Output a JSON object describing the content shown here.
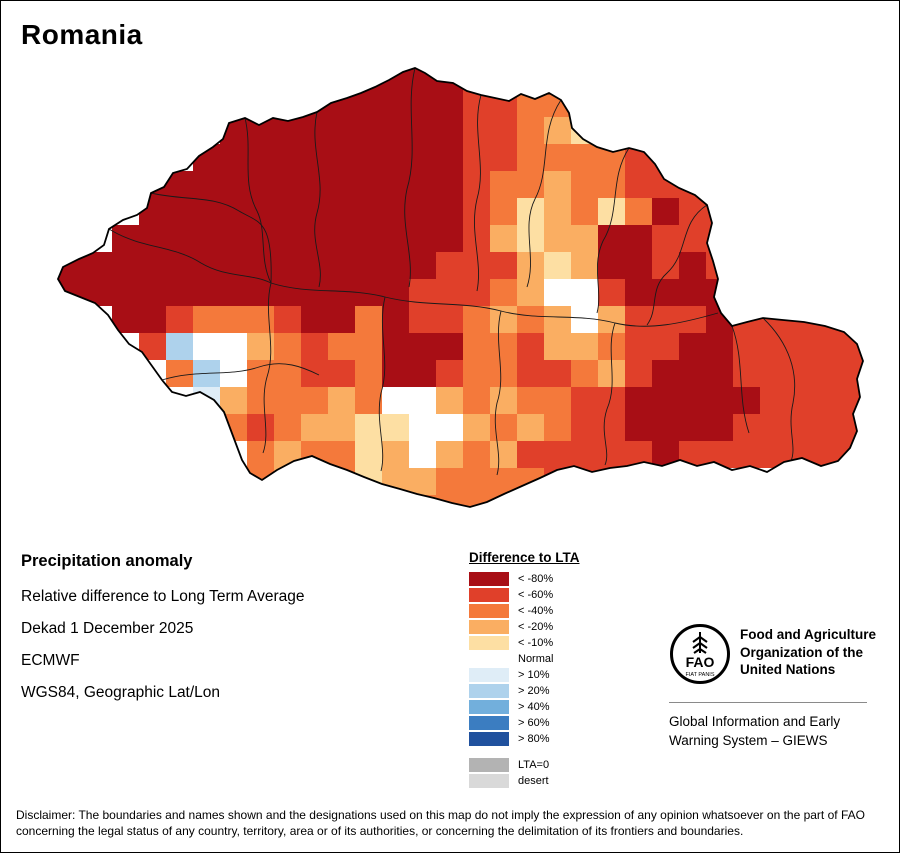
{
  "title": "Romania",
  "info": {
    "heading": "Precipitation anomaly",
    "lines": [
      "Relative difference to Long Term Average",
      "Dekad 1 December 2025",
      "ECMWF",
      "WGS84, Geographic Lat/Lon"
    ]
  },
  "legend": {
    "title": "Difference to LTA",
    "items": [
      {
        "label": "< -80%",
        "color": "#A80E15"
      },
      {
        "label": "< -60%",
        "color": "#E0402A"
      },
      {
        "label": "< -40%",
        "color": "#F4793B"
      },
      {
        "label": "< -20%",
        "color": "#FAAE62"
      },
      {
        "label": "< -10%",
        "color": "#FDDFA3"
      },
      {
        "label": "Normal",
        "color": "#FFFFFF"
      },
      {
        "label": "> 10%",
        "color": "#DFEDF7"
      },
      {
        "label": "> 20%",
        "color": "#AED2EC"
      },
      {
        "label": "> 40%",
        "color": "#72AFDC"
      },
      {
        "label": "> 60%",
        "color": "#3B7DC1"
      },
      {
        "label": "> 80%",
        "color": "#20519E"
      },
      {
        "label": "LTA=0",
        "color": "#B3B3B3",
        "gap_before": true
      },
      {
        "label": "desert",
        "color": "#D9D9D9"
      }
    ]
  },
  "org": {
    "fao_acronym": "FAO",
    "fao_motto": "FIAT PANIS",
    "fao_name": "Food and Agriculture\nOrganization of the\nUnited Nations",
    "giews": "Global Information and Early\nWarning System – GIEWS"
  },
  "disclaimer": "Disclaimer: The boundaries and names shown and the designations used on this map do not imply the expression of any opinion whatsoever on the part of FAO\nconcerning the legal status of any country, territory, area or of its authorities, or concerning the delimitation of its frontiers and boundaries.",
  "map": {
    "palette": {
      "D": "#A80E15",
      "R": "#E0402A",
      "O": "#F4793B",
      "L": "#FAAE62",
      "Y": "#FDDFA3",
      "W": "#FFFFFF",
      "A": "#DFEDF7",
      "B": "#AED2EC"
    },
    "grid": [
      "........DDDDDDDD..............",
      ".......DDDDDDDDRROOOL.........",
      "......DDDDDDDDDRROLYYOR.......",
      ".....DDDDDDDDDDRROOOORRR......",
      "...DDDDDDDDDDDDROOLOORRRR.....",
      "...DDDDDDDDDDDDROYLOYODRR.....",
      "..DDDDDDDDDDDDDRLYLLDDRRR.....",
      "DDDDDDDDDDDDDDRRRLYLDDRDR.....",
      "DDDDDDDDDDDDDRRROLWWRDDDD.....",
      "..DDROOORDDODRROLOLWLRRRDRRRRR",
      "...RBWWLOROODDDOORLLORRDDRRRRR",
      "....OBWOORRODDROORROLRDDDRRRRR",
      ".....ALOOOLOWWLOLOORRDDDDDRRRR",
      "......OROLLYYWWLOLORRDDDDRRRRR",
      ".......OLOOYLWLOLRRRRRDRRRRRRR",
      ".......OLLOYLLOOOORRR.........",
      ".............OOOO............."
    ]
  }
}
